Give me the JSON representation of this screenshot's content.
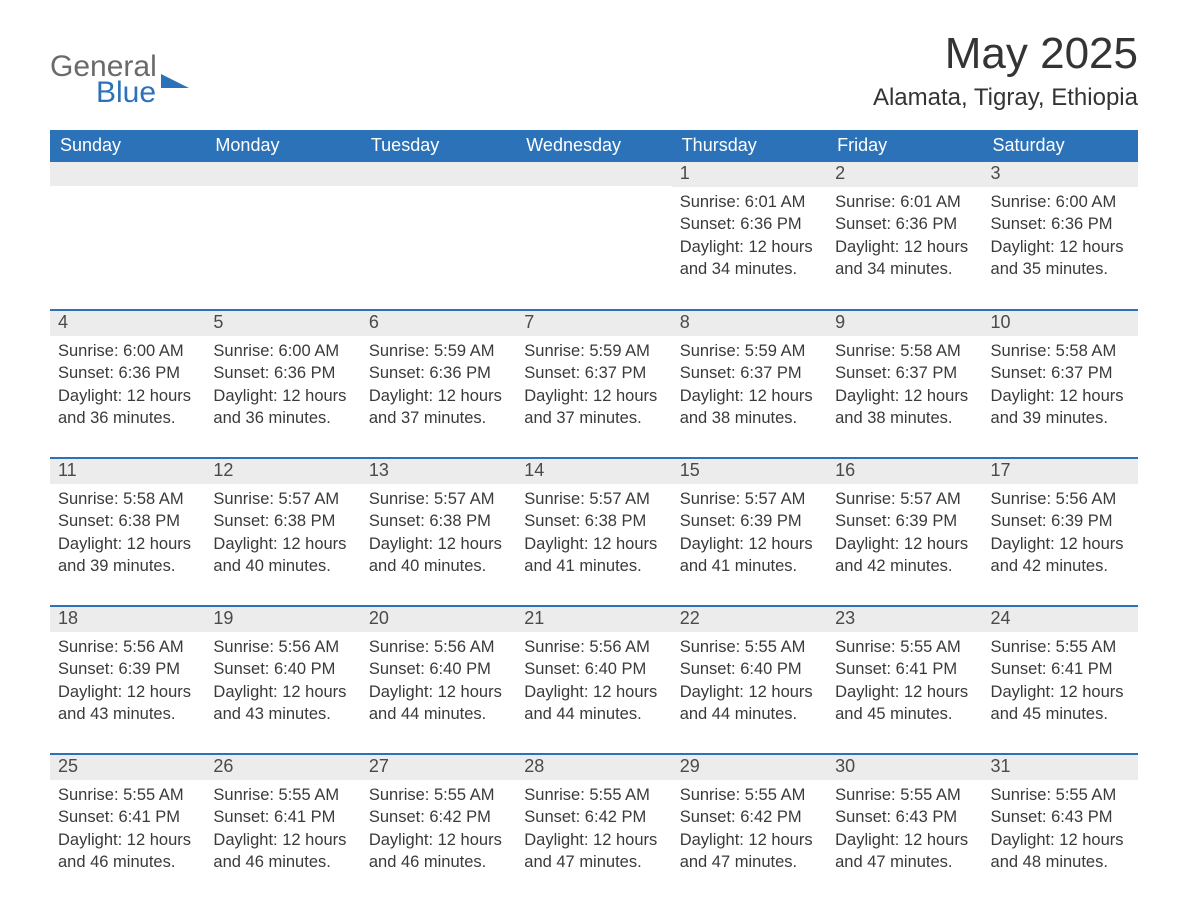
{
  "brand": {
    "word1": "General",
    "word2": "Blue"
  },
  "title": "May 2025",
  "location": "Alamata, Tigray, Ethiopia",
  "colors": {
    "accent": "#2c72b8",
    "row_alt_bg": "#ececec",
    "text": "#3a3a3a",
    "background": "#ffffff"
  },
  "typography": {
    "title_fontsize_pt": 33,
    "location_fontsize_pt": 18,
    "dow_fontsize_pt": 14,
    "daynum_fontsize_pt": 14,
    "body_fontsize_pt": 12
  },
  "days_of_week": [
    "Sunday",
    "Monday",
    "Tuesday",
    "Wednesday",
    "Thursday",
    "Friday",
    "Saturday"
  ],
  "labels": {
    "sunrise": "Sunrise:",
    "sunset": "Sunset:",
    "daylight": "Daylight:"
  },
  "weeks": [
    [
      null,
      null,
      null,
      null,
      {
        "n": "1",
        "sunrise": "6:01 AM",
        "sunset": "6:36 PM",
        "daylight": "12 hours and 34 minutes."
      },
      {
        "n": "2",
        "sunrise": "6:01 AM",
        "sunset": "6:36 PM",
        "daylight": "12 hours and 34 minutes."
      },
      {
        "n": "3",
        "sunrise": "6:00 AM",
        "sunset": "6:36 PM",
        "daylight": "12 hours and 35 minutes."
      }
    ],
    [
      {
        "n": "4",
        "sunrise": "6:00 AM",
        "sunset": "6:36 PM",
        "daylight": "12 hours and 36 minutes."
      },
      {
        "n": "5",
        "sunrise": "6:00 AM",
        "sunset": "6:36 PM",
        "daylight": "12 hours and 36 minutes."
      },
      {
        "n": "6",
        "sunrise": "5:59 AM",
        "sunset": "6:36 PM",
        "daylight": "12 hours and 37 minutes."
      },
      {
        "n": "7",
        "sunrise": "5:59 AM",
        "sunset": "6:37 PM",
        "daylight": "12 hours and 37 minutes."
      },
      {
        "n": "8",
        "sunrise": "5:59 AM",
        "sunset": "6:37 PM",
        "daylight": "12 hours and 38 minutes."
      },
      {
        "n": "9",
        "sunrise": "5:58 AM",
        "sunset": "6:37 PM",
        "daylight": "12 hours and 38 minutes."
      },
      {
        "n": "10",
        "sunrise": "5:58 AM",
        "sunset": "6:37 PM",
        "daylight": "12 hours and 39 minutes."
      }
    ],
    [
      {
        "n": "11",
        "sunrise": "5:58 AM",
        "sunset": "6:38 PM",
        "daylight": "12 hours and 39 minutes."
      },
      {
        "n": "12",
        "sunrise": "5:57 AM",
        "sunset": "6:38 PM",
        "daylight": "12 hours and 40 minutes."
      },
      {
        "n": "13",
        "sunrise": "5:57 AM",
        "sunset": "6:38 PM",
        "daylight": "12 hours and 40 minutes."
      },
      {
        "n": "14",
        "sunrise": "5:57 AM",
        "sunset": "6:38 PM",
        "daylight": "12 hours and 41 minutes."
      },
      {
        "n": "15",
        "sunrise": "5:57 AM",
        "sunset": "6:39 PM",
        "daylight": "12 hours and 41 minutes."
      },
      {
        "n": "16",
        "sunrise": "5:57 AM",
        "sunset": "6:39 PM",
        "daylight": "12 hours and 42 minutes."
      },
      {
        "n": "17",
        "sunrise": "5:56 AM",
        "sunset": "6:39 PM",
        "daylight": "12 hours and 42 minutes."
      }
    ],
    [
      {
        "n": "18",
        "sunrise": "5:56 AM",
        "sunset": "6:39 PM",
        "daylight": "12 hours and 43 minutes."
      },
      {
        "n": "19",
        "sunrise": "5:56 AM",
        "sunset": "6:40 PM",
        "daylight": "12 hours and 43 minutes."
      },
      {
        "n": "20",
        "sunrise": "5:56 AM",
        "sunset": "6:40 PM",
        "daylight": "12 hours and 44 minutes."
      },
      {
        "n": "21",
        "sunrise": "5:56 AM",
        "sunset": "6:40 PM",
        "daylight": "12 hours and 44 minutes."
      },
      {
        "n": "22",
        "sunrise": "5:55 AM",
        "sunset": "6:40 PM",
        "daylight": "12 hours and 44 minutes."
      },
      {
        "n": "23",
        "sunrise": "5:55 AM",
        "sunset": "6:41 PM",
        "daylight": "12 hours and 45 minutes."
      },
      {
        "n": "24",
        "sunrise": "5:55 AM",
        "sunset": "6:41 PM",
        "daylight": "12 hours and 45 minutes."
      }
    ],
    [
      {
        "n": "25",
        "sunrise": "5:55 AM",
        "sunset": "6:41 PM",
        "daylight": "12 hours and 46 minutes."
      },
      {
        "n": "26",
        "sunrise": "5:55 AM",
        "sunset": "6:41 PM",
        "daylight": "12 hours and 46 minutes."
      },
      {
        "n": "27",
        "sunrise": "5:55 AM",
        "sunset": "6:42 PM",
        "daylight": "12 hours and 46 minutes."
      },
      {
        "n": "28",
        "sunrise": "5:55 AM",
        "sunset": "6:42 PM",
        "daylight": "12 hours and 47 minutes."
      },
      {
        "n": "29",
        "sunrise": "5:55 AM",
        "sunset": "6:42 PM",
        "daylight": "12 hours and 47 minutes."
      },
      {
        "n": "30",
        "sunrise": "5:55 AM",
        "sunset": "6:43 PM",
        "daylight": "12 hours and 47 minutes."
      },
      {
        "n": "31",
        "sunrise": "5:55 AM",
        "sunset": "6:43 PM",
        "daylight": "12 hours and 48 minutes."
      }
    ]
  ]
}
